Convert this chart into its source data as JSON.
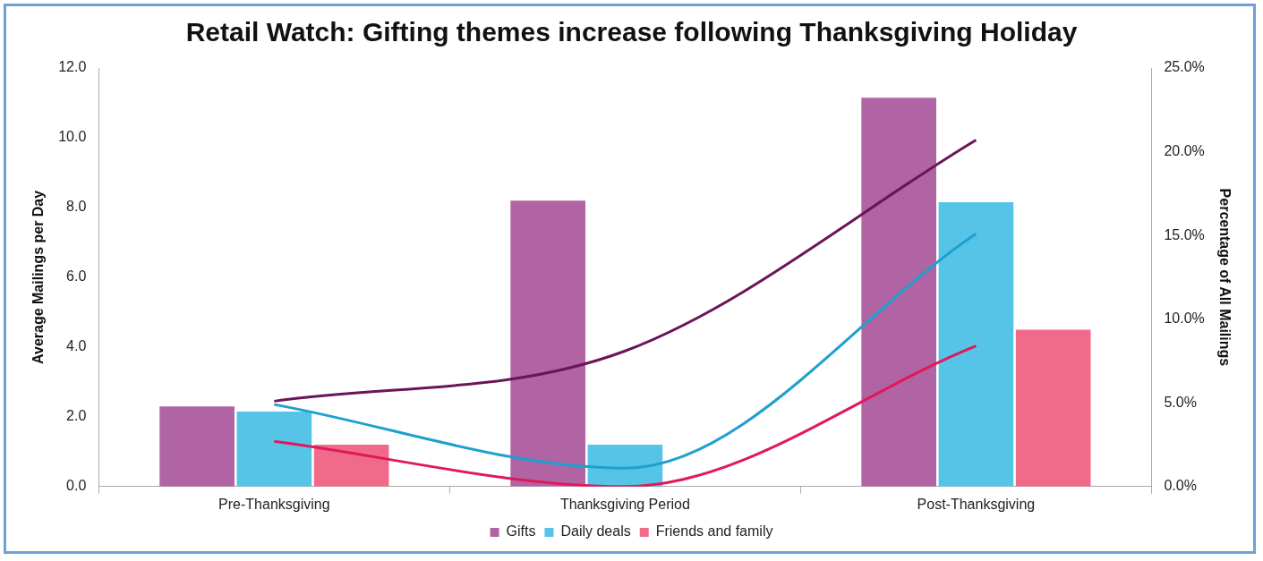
{
  "chart_data": {
    "type": "bar",
    "title": "Retail Watch: Gifting themes increase following Thanksgiving Holiday",
    "ylabel": "Average Mailings per Day",
    "y2label": "Percentage of All Mailings",
    "categories": [
      "Pre-Thanksgiving",
      "Thanksgiving Period",
      "Post-Thanksgiving"
    ],
    "series": [
      {
        "name": "Gifts",
        "color": "#b064a4",
        "values": [
          2.3,
          8.2,
          11.15
        ]
      },
      {
        "name": "Daily deals",
        "color": "#56c4e6",
        "values": [
          2.15,
          1.2,
          8.15
        ]
      },
      {
        "name": "Friends and family",
        "color": "#f06a8a",
        "values": [
          1.2,
          0,
          4.5
        ]
      },
      {
        "type": "line",
        "axis": "y2",
        "color": "#6b1458",
        "values": [
          5.1,
          8.1,
          20.7
        ]
      },
      {
        "type": "line",
        "axis": "y2",
        "color": "#1ea0cf",
        "values": [
          4.9,
          1.1,
          15.1
        ]
      },
      {
        "type": "line",
        "axis": "y2",
        "color": "#e0195a",
        "values": [
          2.7,
          0,
          8.4
        ]
      }
    ],
    "ylim": [
      0,
      12
    ],
    "yticks": [
      {
        "value": 0,
        "label": "0.0"
      },
      {
        "value": 2,
        "label": "2.0"
      },
      {
        "value": 4,
        "label": "4.0"
      },
      {
        "value": 6,
        "label": "6.0"
      },
      {
        "value": 8,
        "label": "8.0"
      },
      {
        "value": 10,
        "label": "10.0"
      },
      {
        "value": 12,
        "label": "12.0"
      }
    ],
    "y2lim": [
      0,
      25
    ],
    "y2ticks": [
      {
        "value": 0,
        "label": "0.0%"
      },
      {
        "value": 5,
        "label": "5.0%"
      },
      {
        "value": 10,
        "label": "10.0%"
      },
      {
        "value": 15,
        "label": "15.0%"
      },
      {
        "value": 20,
        "label": "20.0%"
      },
      {
        "value": 25,
        "label": "25.0%"
      }
    ],
    "grid": false,
    "legend": "bottom",
    "marker": "none",
    "line_style": "solid"
  }
}
